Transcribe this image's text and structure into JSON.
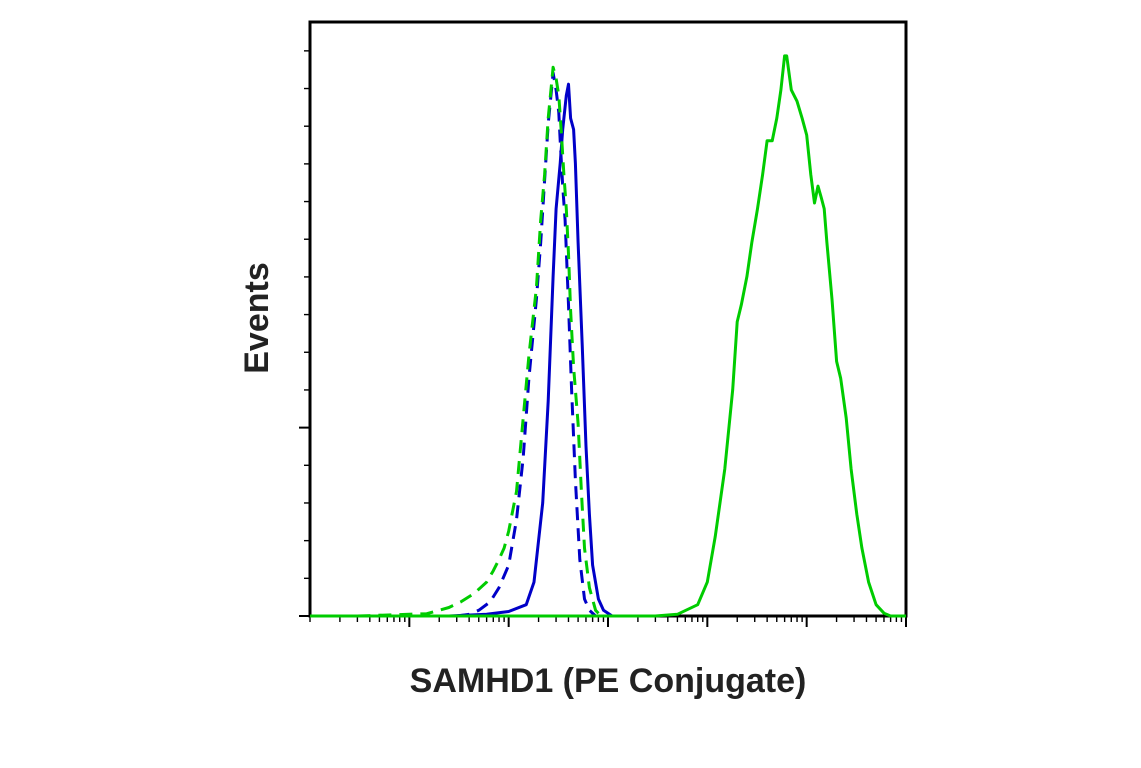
{
  "chart_data": {
    "type": "line",
    "title": "",
    "xlabel": "SAMHD1 (PE Conjugate)",
    "ylabel": "Events",
    "x_scale": "log",
    "xlim": [
      0.1,
      100000
    ],
    "ylim": [
      0,
      105
    ],
    "x_major_ticks": [
      1,
      10,
      100,
      1000,
      10000,
      100000
    ],
    "y_major_ticks": [
      0,
      33.3,
      66.7,
      100
    ],
    "grid": false,
    "legend": "none",
    "series": [
      {
        "color": "#0000c8",
        "dash": "solid",
        "points": [
          [
            2.5,
            0
          ],
          [
            6,
            0.3
          ],
          [
            10,
            0.8
          ],
          [
            15,
            2
          ],
          [
            18,
            6
          ],
          [
            22,
            20
          ],
          [
            25,
            38
          ],
          [
            28,
            60
          ],
          [
            30,
            72
          ],
          [
            33,
            80
          ],
          [
            35,
            86
          ],
          [
            37,
            90
          ],
          [
            38,
            92
          ],
          [
            40,
            94
          ],
          [
            42,
            88
          ],
          [
            45,
            86
          ],
          [
            47,
            80
          ],
          [
            50,
            66
          ],
          [
            55,
            48
          ],
          [
            60,
            30
          ],
          [
            65,
            18
          ],
          [
            70,
            9
          ],
          [
            80,
            3
          ],
          [
            90,
            1
          ],
          [
            110,
            0
          ],
          [
            130,
            0
          ]
        ]
      },
      {
        "color": "#0000c8",
        "dash": "dashed",
        "points": [
          [
            3,
            0
          ],
          [
            4,
            0.3
          ],
          [
            5,
            1
          ],
          [
            6.5,
            2.5
          ],
          [
            8,
            5
          ],
          [
            10,
            9
          ],
          [
            12,
            17
          ],
          [
            14,
            28
          ],
          [
            16,
            42
          ],
          [
            19,
            56
          ],
          [
            21,
            66
          ],
          [
            23,
            77
          ],
          [
            25,
            87
          ],
          [
            27,
            93
          ],
          [
            28,
            96
          ],
          [
            30,
            93
          ],
          [
            32,
            89
          ],
          [
            33,
            84
          ],
          [
            35,
            76
          ],
          [
            37,
            70
          ],
          [
            40,
            55
          ],
          [
            43,
            40
          ],
          [
            47,
            24
          ],
          [
            52,
            10
          ],
          [
            58,
            3
          ],
          [
            65,
            1
          ],
          [
            75,
            0
          ]
        ]
      },
      {
        "color": "#00cc00",
        "dash": "dashed",
        "points": [
          [
            0.3,
            0
          ],
          [
            1.5,
            0.4
          ],
          [
            2.5,
            1.5
          ],
          [
            3.3,
            2.5
          ],
          [
            4.5,
            4
          ],
          [
            6,
            6
          ],
          [
            7,
            8
          ],
          [
            8,
            10
          ],
          [
            9,
            12
          ],
          [
            10,
            15
          ],
          [
            12,
            22
          ],
          [
            14,
            35
          ],
          [
            16,
            46
          ],
          [
            19,
            58
          ],
          [
            21,
            70
          ],
          [
            23,
            78
          ],
          [
            25,
            88
          ],
          [
            27,
            94
          ],
          [
            28,
            97
          ],
          [
            30,
            95
          ],
          [
            32,
            92
          ],
          [
            34,
            85
          ],
          [
            36,
            78
          ],
          [
            38,
            72
          ],
          [
            40,
            64
          ],
          [
            42,
            54
          ],
          [
            45,
            44
          ],
          [
            50,
            34
          ],
          [
            54,
            22
          ],
          [
            58,
            12
          ],
          [
            65,
            5
          ],
          [
            75,
            1
          ],
          [
            85,
            0
          ],
          [
            95,
            0
          ]
        ]
      },
      {
        "color": "#00cc00",
        "dash": "solid",
        "points": [
          [
            0.1,
            0
          ],
          [
            300,
            0
          ],
          [
            500,
            0.3
          ],
          [
            800,
            2
          ],
          [
            1000,
            6
          ],
          [
            1200,
            14
          ],
          [
            1500,
            26
          ],
          [
            1800,
            40
          ],
          [
            2000,
            52
          ],
          [
            2200,
            55
          ],
          [
            2500,
            60
          ],
          [
            2800,
            66
          ],
          [
            3200,
            72
          ],
          [
            3600,
            78
          ],
          [
            4000,
            84
          ],
          [
            4500,
            84
          ],
          [
            5000,
            88
          ],
          [
            5500,
            93
          ],
          [
            6000,
            99
          ],
          [
            6300,
            99
          ],
          [
            7000,
            93
          ],
          [
            8000,
            91
          ],
          [
            9000,
            88
          ],
          [
            10000,
            85
          ],
          [
            11000,
            78
          ],
          [
            12000,
            73
          ],
          [
            13000,
            76
          ],
          [
            14000,
            74
          ],
          [
            15000,
            72
          ],
          [
            16000,
            66
          ],
          [
            18000,
            56
          ],
          [
            20000,
            45
          ],
          [
            22000,
            42
          ],
          [
            25000,
            35
          ],
          [
            28000,
            26
          ],
          [
            32000,
            18
          ],
          [
            36000,
            12
          ],
          [
            42000,
            6
          ],
          [
            50000,
            2
          ],
          [
            60000,
            0.5
          ],
          [
            70000,
            0
          ],
          [
            100000,
            0
          ]
        ]
      }
    ]
  }
}
